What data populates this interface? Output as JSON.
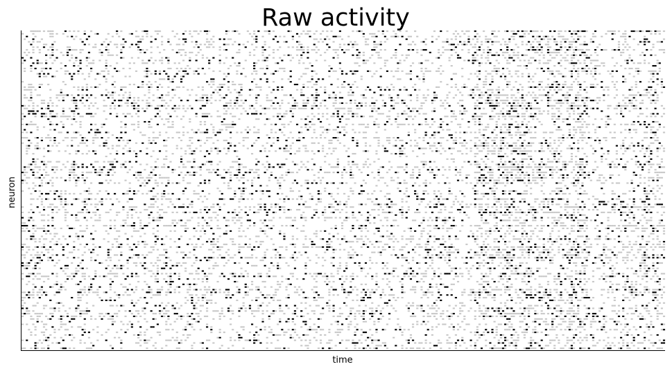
{
  "chart_data": {
    "type": "heatmap",
    "title": "Raw activity",
    "xlabel": "time",
    "ylabel": "neuron",
    "xticks": [],
    "yticks": [],
    "grid": false,
    "legend": "none",
    "colormap": [
      "#ffffff",
      "#c8c8c8",
      "#000000"
    ],
    "rows": 120,
    "cols": 300,
    "value_range": [
      0,
      1
    ],
    "axis_spines": [
      "left",
      "bottom"
    ]
  }
}
